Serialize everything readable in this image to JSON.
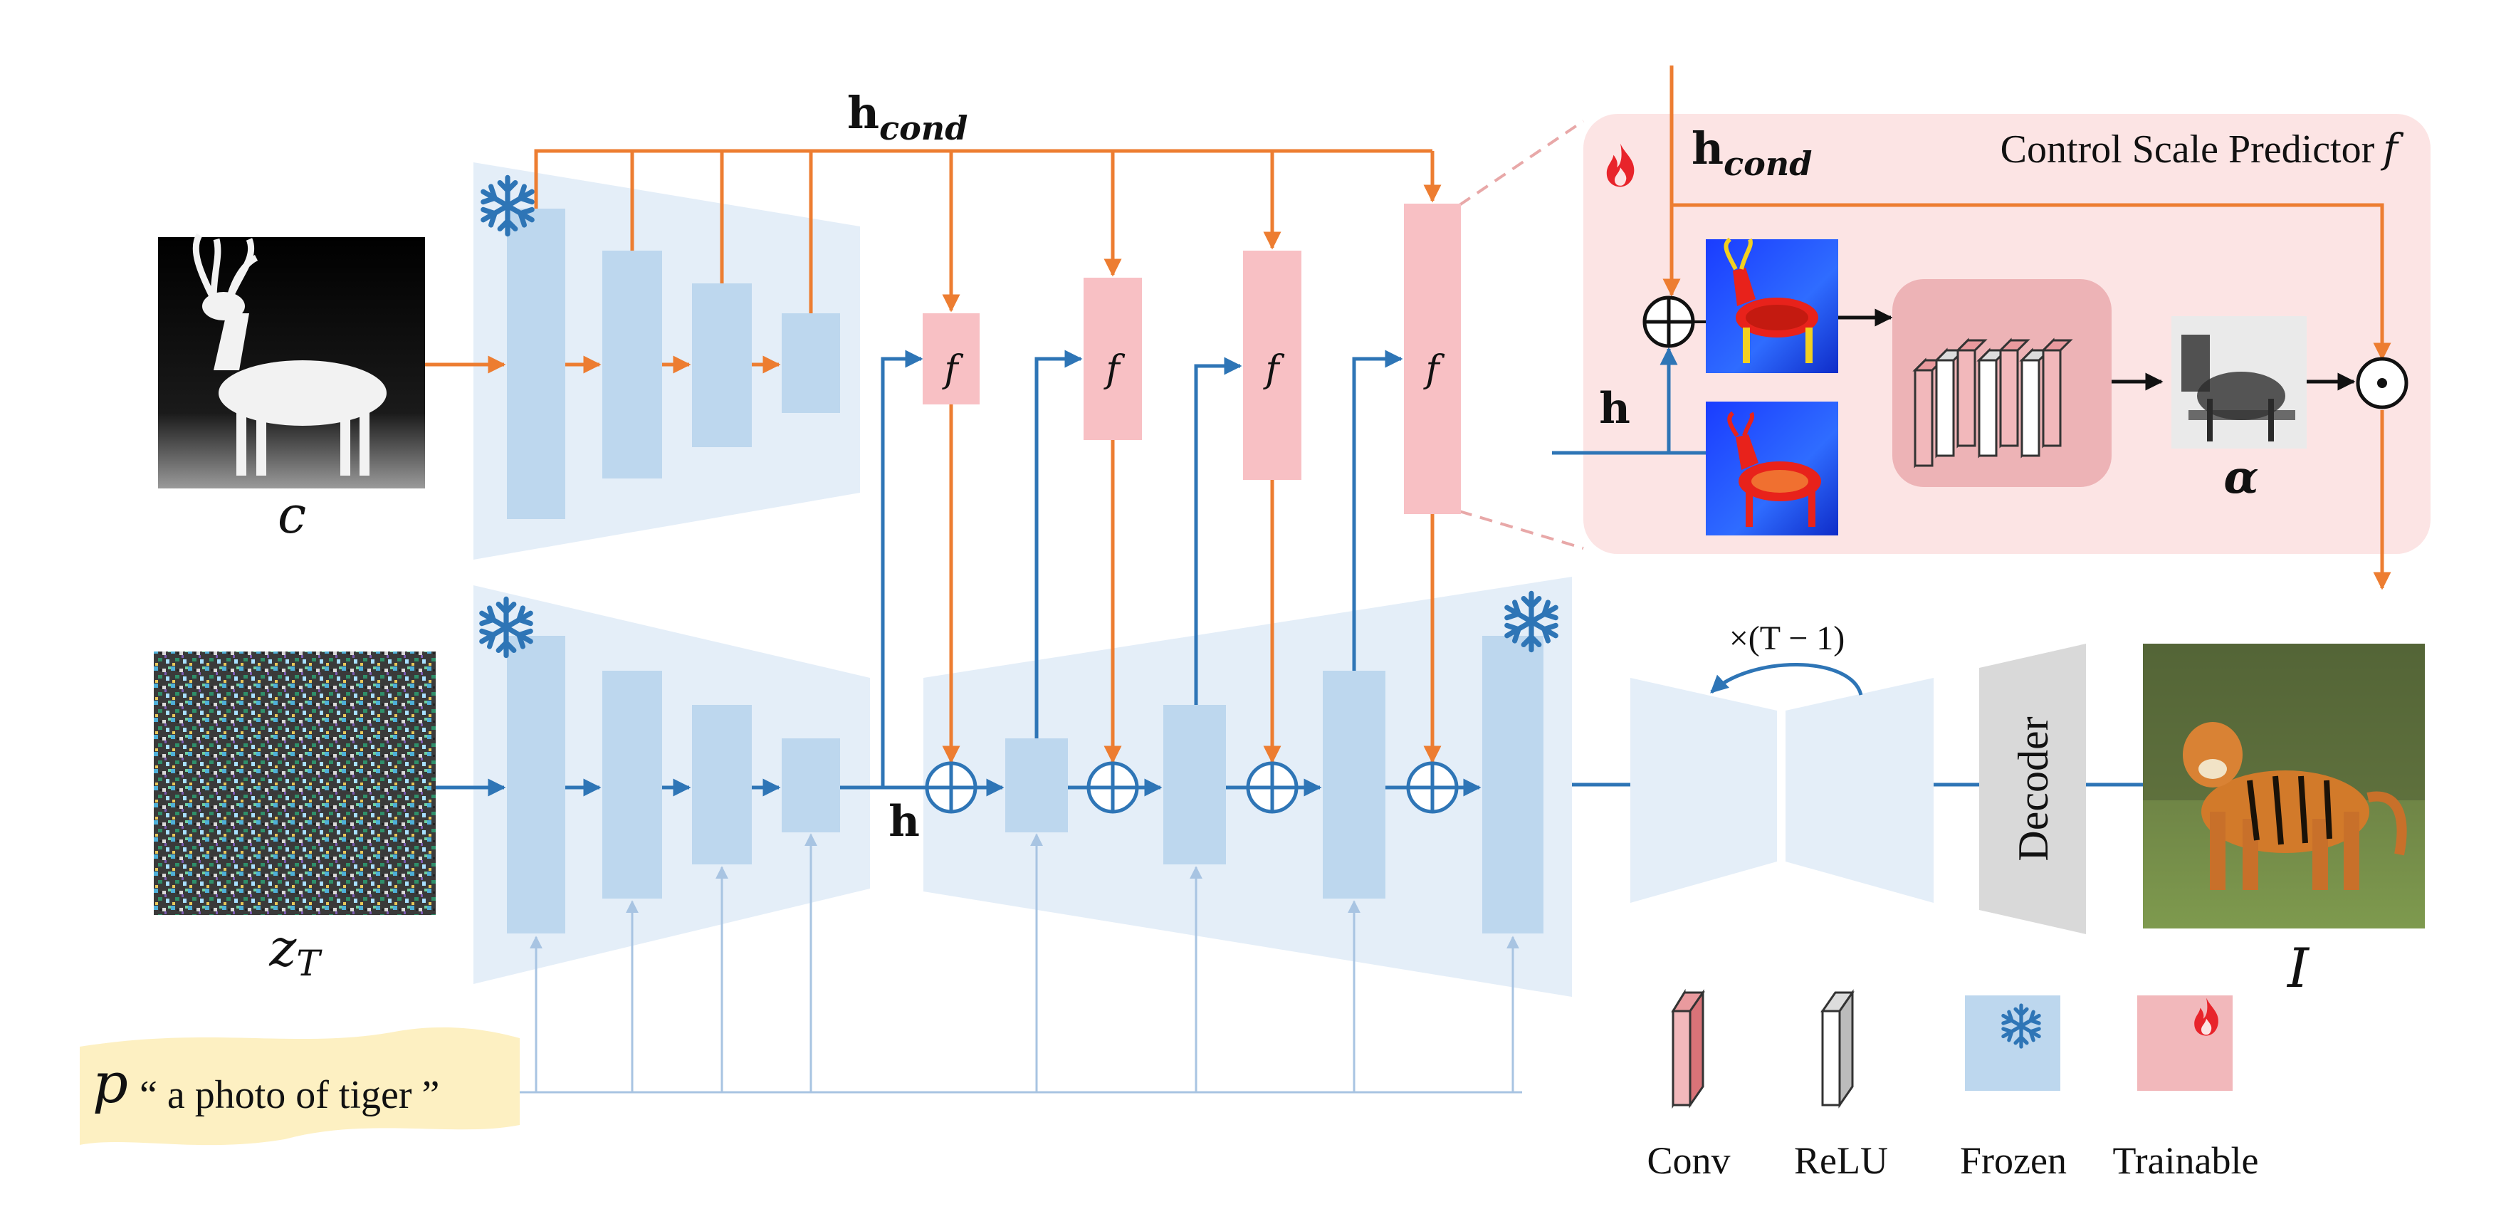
{
  "labels": {
    "h_cond_bold": "h",
    "h_cond_sub": "cond",
    "h_top": "h",
    "h_bottom": "h",
    "c": "c",
    "z": "z",
    "z_sub": "T",
    "predictor_title": "Control Scale Predictor",
    "predictor_f": "f",
    "f": "f",
    "alpha": "α",
    "loop": "×(T − 1)",
    "decoder": "Decoder",
    "output": "I",
    "prompt_p": "p",
    "prompt_text": "“ a photo of tiger ”"
  },
  "legend": {
    "conv": "Conv",
    "relu": "ReLU",
    "frozen": "Frozen",
    "trainable": "Trainable"
  },
  "colors": {
    "orange": "#ED7D31",
    "blue": "#2E75B6",
    "block_blue": "#BDD7EE",
    "panel_blue": "#E4EEF8",
    "pink": "#F8C0C4",
    "panel_pink": "#FCE4E4",
    "prompt_bg": "#FDF0C2",
    "decoder_gray": "#D9D9D9"
  },
  "icons": {
    "frozen": "snowflake-icon",
    "trainable": "flame-icon"
  }
}
